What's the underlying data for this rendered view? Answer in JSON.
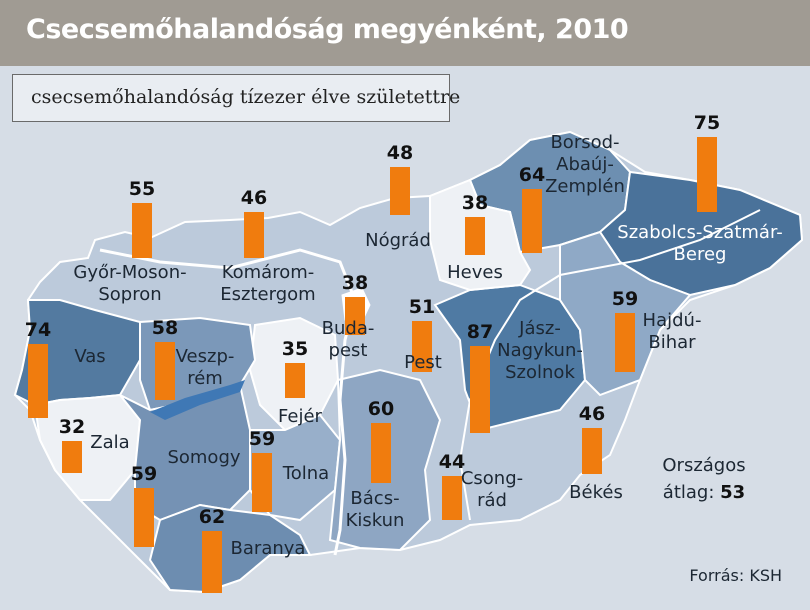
{
  "title": "Csecsemőhalandóság megyénként, 2010",
  "legend": "csecsemőhalandóság tízezer élve születettre",
  "source": "Forrás: KSH",
  "national_average": {
    "label_line1": "Országos",
    "label_line2": "átlag:",
    "value": "53"
  },
  "colors": {
    "bar": "#f07c0e",
    "title_bar": "#a09b93",
    "background": "#d6dde6"
  },
  "counties": [
    {
      "id": "gyor",
      "name_lines": [
        "Győr-Moson-",
        "Sopron"
      ],
      "value": 55
    },
    {
      "id": "komarom",
      "name_lines": [
        "Komárom-",
        "Esztergom"
      ],
      "value": 46
    },
    {
      "id": "nograd",
      "name_lines": [
        "Nógrád"
      ],
      "value": 48
    },
    {
      "id": "heves",
      "name_lines": [
        "Heves"
      ],
      "value": 38
    },
    {
      "id": "borsod",
      "name_lines": [
        "Borsod-",
        "Abaúj-",
        "Zemplén"
      ],
      "value": 64
    },
    {
      "id": "szabolcs",
      "name_lines": [
        "Szabolcs-Szatmár-",
        "Bereg"
      ],
      "value": 75
    },
    {
      "id": "vas",
      "name_lines": [
        "Vas"
      ],
      "value": 74
    },
    {
      "id": "veszprem",
      "name_lines": [
        "Veszp-",
        "rém"
      ],
      "value": 58
    },
    {
      "id": "budapest",
      "name_lines": [
        "Buda-",
        "pest"
      ],
      "value": 38
    },
    {
      "id": "pest",
      "name_lines": [
        "Pest"
      ],
      "value": 51
    },
    {
      "id": "fejer",
      "name_lines": [
        "Fejér"
      ],
      "value": 35
    },
    {
      "id": "jasz",
      "name_lines": [
        "Jász-",
        "Nagykun-",
        "Szolnok"
      ],
      "value": 87
    },
    {
      "id": "hajdu",
      "name_lines": [
        "Hajdú-",
        "Bihar"
      ],
      "value": 59
    },
    {
      "id": "zala",
      "name_lines": [
        "Zala"
      ],
      "value": 32
    },
    {
      "id": "somogy",
      "name_lines": [
        "Somogy"
      ],
      "value": 59
    },
    {
      "id": "tolna",
      "name_lines": [
        "Tolna"
      ],
      "value": 59
    },
    {
      "id": "bacs",
      "name_lines": [
        "Bács-",
        "Kiskun"
      ],
      "value": 60
    },
    {
      "id": "csongrad",
      "name_lines": [
        "Csong-",
        "rád"
      ],
      "value": 44
    },
    {
      "id": "bekes",
      "name_lines": [
        "Békés"
      ],
      "value": 46
    },
    {
      "id": "baranya",
      "name_lines": [
        "Baranya"
      ],
      "value": 62
    }
  ]
}
